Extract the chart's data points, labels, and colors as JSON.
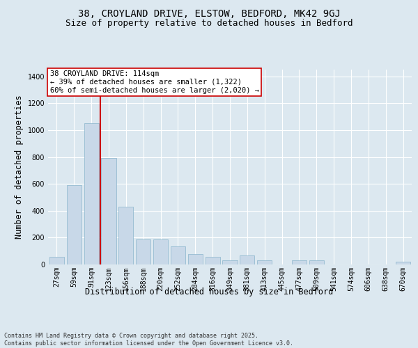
{
  "title_line1": "38, CROYLAND DRIVE, ELSTOW, BEDFORD, MK42 9GJ",
  "title_line2": "Size of property relative to detached houses in Bedford",
  "xlabel": "Distribution of detached houses by size in Bedford",
  "ylabel": "Number of detached properties",
  "categories": [
    "27sqm",
    "59sqm",
    "91sqm",
    "123sqm",
    "156sqm",
    "188sqm",
    "220sqm",
    "252sqm",
    "284sqm",
    "316sqm",
    "349sqm",
    "381sqm",
    "413sqm",
    "445sqm",
    "477sqm",
    "509sqm",
    "541sqm",
    "574sqm",
    "606sqm",
    "638sqm",
    "670sqm"
  ],
  "values": [
    55,
    590,
    1050,
    790,
    430,
    185,
    185,
    135,
    80,
    55,
    30,
    65,
    30,
    0,
    30,
    30,
    0,
    0,
    0,
    0,
    20
  ],
  "bar_color": "#c8d8e8",
  "bar_edge_color": "#8ab4cc",
  "red_line_index": 2.5,
  "red_line_color": "#cc0000",
  "annotation_text": "38 CROYLAND DRIVE: 114sqm\n← 39% of detached houses are smaller (1,322)\n60% of semi-detached houses are larger (2,020) →",
  "annotation_box_color": "#ffffff",
  "annotation_box_edge": "#cc0000",
  "ylim": [
    0,
    1450
  ],
  "yticks": [
    0,
    200,
    400,
    600,
    800,
    1000,
    1200,
    1400
  ],
  "background_color": "#dce8f0",
  "plot_bg_color": "#dce8f0",
  "grid_color": "#ffffff",
  "footer_text": "Contains HM Land Registry data © Crown copyright and database right 2025.\nContains public sector information licensed under the Open Government Licence v3.0.",
  "title_fontsize": 10,
  "subtitle_fontsize": 9,
  "tick_fontsize": 7,
  "label_fontsize": 8.5,
  "annot_fontsize": 7.5,
  "footer_fontsize": 6
}
